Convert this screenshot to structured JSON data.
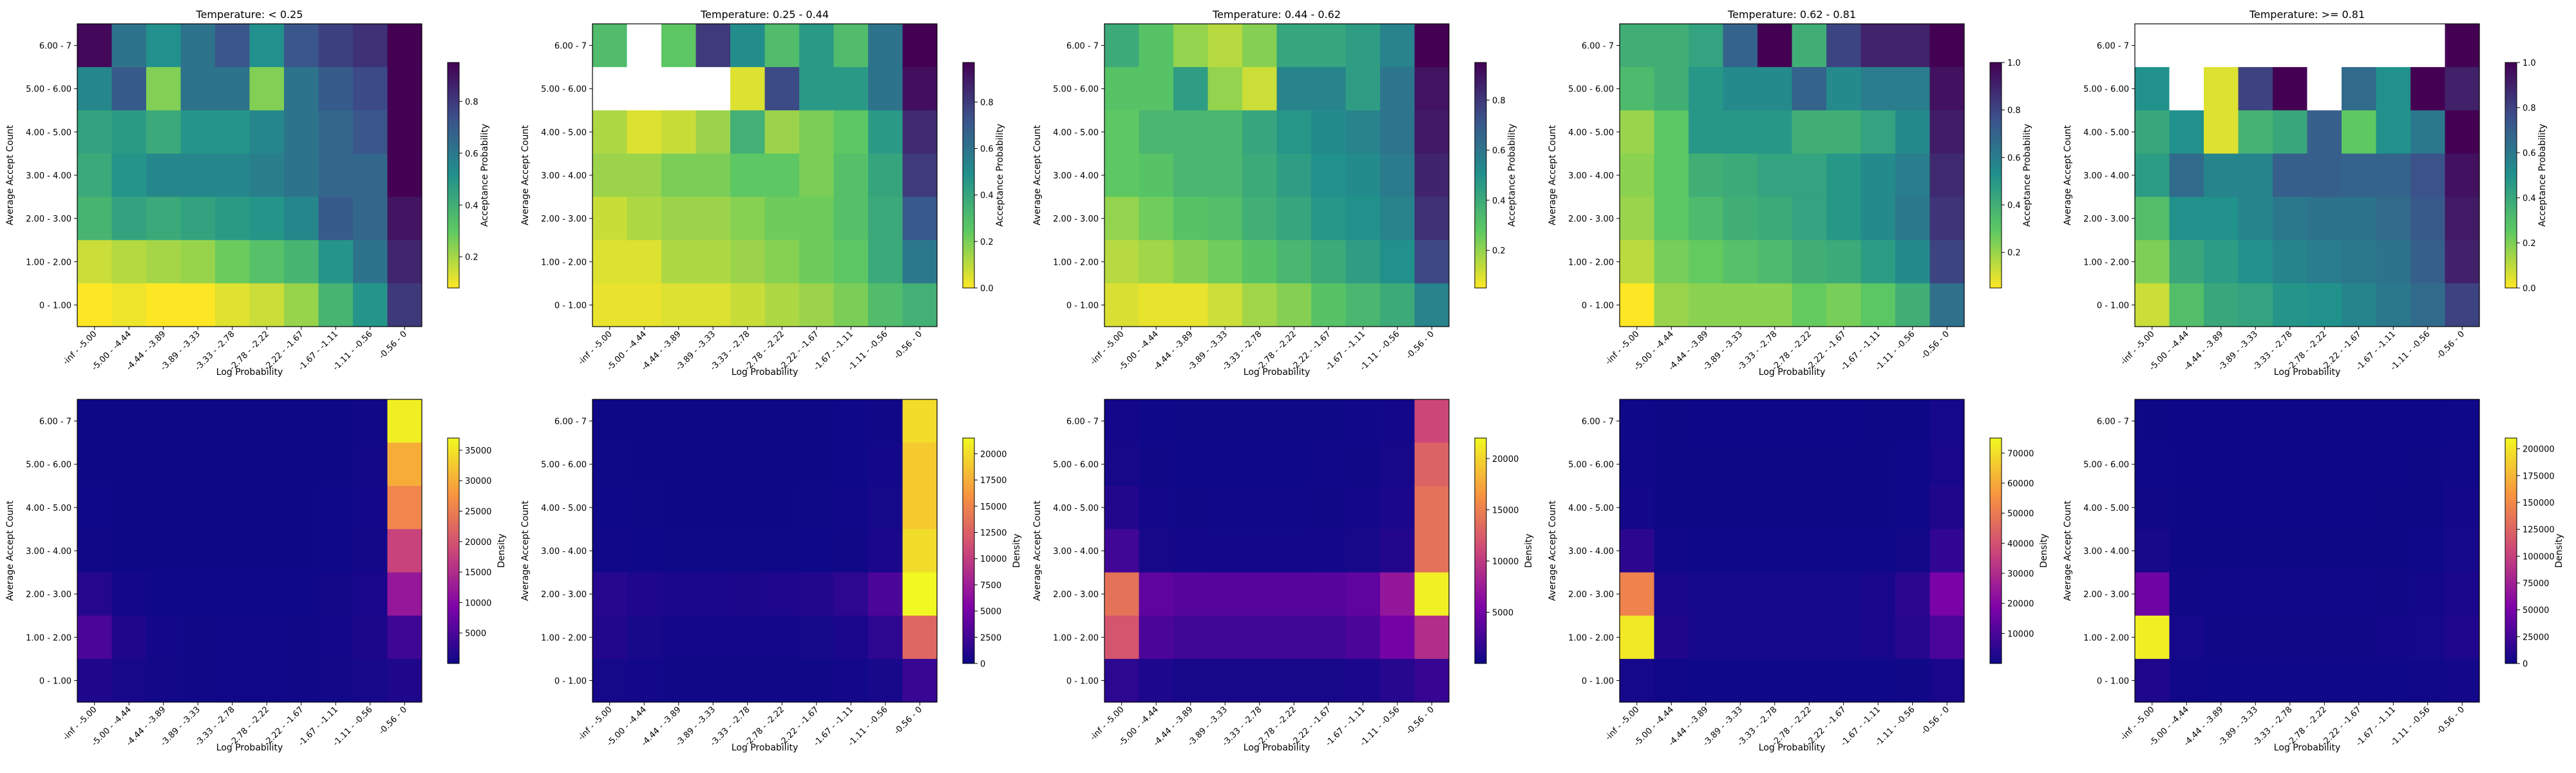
{
  "chart_data": {
    "type": "heatmap",
    "rows": [
      "0 - 1.00",
      "1.00 - 2.00",
      "2.00 - 3.00",
      "3.00 - 4.00",
      "4.00 - 5.00",
      "5.00 - 6.00",
      "6.00 - 7"
    ],
    "cols": [
      "-inf - -5.00",
      "-5.00 - -4.44",
      "-4.44 - -3.89",
      "-3.89 - -3.33",
      "-3.33 - -2.78",
      "-2.78 - -2.22",
      "-2.22 - -1.67",
      "-1.67 - -1.11",
      "-1.11 - -0.56",
      "-0.56 - 0"
    ],
    "xlabel": "Log Probability",
    "ylabel": "Average Accept Count",
    "row_order": "top row is 6.00 - 7, bottom row is 0 - 1.00",
    "panels_top": [
      {
        "title": "Temperature: < 0.25",
        "colormap": "viridis_r",
        "colorbar_label": "Acceptance Probability",
        "vmin": 0.08,
        "vmax": 0.95,
        "ticks": [
          "0.2",
          "0.4",
          "0.6",
          "0.8"
        ],
        "tick_values": [
          0.2,
          0.4,
          0.6,
          0.8
        ],
        "values": [
          [
            0.93,
            0.62,
            0.52,
            0.62,
            0.72,
            0.52,
            0.72,
            0.78,
            0.82,
            0.95
          ],
          [
            0.55,
            0.7,
            0.25,
            0.62,
            0.62,
            0.25,
            0.62,
            0.7,
            0.75,
            0.95
          ],
          [
            0.45,
            0.48,
            0.42,
            0.5,
            0.5,
            0.55,
            0.62,
            0.66,
            0.72,
            0.95
          ],
          [
            0.42,
            0.5,
            0.55,
            0.55,
            0.55,
            0.58,
            0.62,
            0.66,
            0.66,
            0.95
          ],
          [
            0.38,
            0.45,
            0.42,
            0.45,
            0.48,
            0.5,
            0.55,
            0.7,
            0.66,
            0.9
          ],
          [
            0.15,
            0.18,
            0.2,
            0.22,
            0.28,
            0.33,
            0.38,
            0.5,
            0.62,
            0.85
          ],
          [
            0.08,
            0.1,
            0.08,
            0.08,
            0.12,
            0.15,
            0.22,
            0.38,
            0.5,
            0.8
          ]
        ]
      },
      {
        "title": "Temperature: 0.25 - 0.44",
        "colormap": "viridis_r",
        "colorbar_label": "Acceptance Probability",
        "vmin": 0.0,
        "vmax": 0.97,
        "ticks": [
          "0.0",
          "0.2",
          "0.4",
          "0.6",
          "0.8"
        ],
        "tick_values": [
          0.0,
          0.2,
          0.4,
          0.6,
          0.8
        ],
        "values": [
          [
            0.3,
            null,
            0.25,
            0.8,
            0.5,
            0.3,
            0.45,
            0.3,
            0.6,
            0.97
          ],
          [
            null,
            null,
            null,
            null,
            0.05,
            0.75,
            0.45,
            0.45,
            0.6,
            0.93
          ],
          [
            0.12,
            0.05,
            0.08,
            0.15,
            0.35,
            0.15,
            0.2,
            0.25,
            0.45,
            0.85
          ],
          [
            0.15,
            0.15,
            0.2,
            0.2,
            0.25,
            0.25,
            0.2,
            0.28,
            0.4,
            0.8
          ],
          [
            0.08,
            0.12,
            0.15,
            0.15,
            0.18,
            0.22,
            0.22,
            0.28,
            0.38,
            0.7
          ],
          [
            0.05,
            0.05,
            0.12,
            0.12,
            0.15,
            0.18,
            0.22,
            0.25,
            0.38,
            0.58
          ],
          [
            0.03,
            0.03,
            0.05,
            0.05,
            0.08,
            0.12,
            0.15,
            0.2,
            0.3,
            0.35
          ]
        ]
      },
      {
        "title": "Temperature: 0.44 - 0.62",
        "colormap": "viridis_r",
        "colorbar_label": "Acceptance Probability",
        "vmin": 0.05,
        "vmax": 0.95,
        "ticks": [
          "0.2",
          "0.4",
          "0.6",
          "0.8"
        ],
        "tick_values": [
          0.2,
          0.4,
          0.6,
          0.8
        ],
        "values": [
          [
            0.4,
            0.3,
            0.2,
            0.15,
            0.22,
            0.42,
            0.42,
            0.45,
            0.55,
            0.95
          ],
          [
            0.3,
            0.3,
            0.45,
            0.2,
            0.12,
            0.55,
            0.55,
            0.45,
            0.6,
            0.9
          ],
          [
            0.28,
            0.35,
            0.35,
            0.35,
            0.42,
            0.48,
            0.52,
            0.55,
            0.6,
            0.88
          ],
          [
            0.28,
            0.3,
            0.35,
            0.35,
            0.4,
            0.45,
            0.5,
            0.52,
            0.58,
            0.85
          ],
          [
            0.2,
            0.25,
            0.3,
            0.32,
            0.38,
            0.42,
            0.48,
            0.5,
            0.55,
            0.82
          ],
          [
            0.15,
            0.18,
            0.22,
            0.25,
            0.3,
            0.35,
            0.4,
            0.45,
            0.5,
            0.75
          ],
          [
            0.1,
            0.08,
            0.08,
            0.12,
            0.18,
            0.22,
            0.3,
            0.35,
            0.4,
            0.55
          ]
        ]
      },
      {
        "title": "Temperature: 0.62 - 0.81",
        "colormap": "viridis_r",
        "colorbar_label": "Acceptance Probability",
        "vmin": 0.05,
        "vmax": 1.0,
        "ticks": [
          "0.2",
          "0.4",
          "0.6",
          "0.8",
          "1.0"
        ],
        "tick_values": [
          0.2,
          0.4,
          0.6,
          0.8,
          1.0
        ],
        "values": [
          [
            0.4,
            0.4,
            0.45,
            0.7,
            1.0,
            0.4,
            0.8,
            0.9,
            0.9,
            1.0
          ],
          [
            0.35,
            0.4,
            0.5,
            0.55,
            0.55,
            0.7,
            0.55,
            0.6,
            0.6,
            0.95
          ],
          [
            0.2,
            0.3,
            0.5,
            0.5,
            0.5,
            0.4,
            0.4,
            0.45,
            0.55,
            0.92
          ],
          [
            0.22,
            0.3,
            0.4,
            0.42,
            0.45,
            0.45,
            0.5,
            0.55,
            0.6,
            0.88
          ],
          [
            0.2,
            0.3,
            0.35,
            0.4,
            0.42,
            0.45,
            0.5,
            0.55,
            0.62,
            0.85
          ],
          [
            0.15,
            0.25,
            0.28,
            0.32,
            0.35,
            0.4,
            0.42,
            0.48,
            0.55,
            0.8
          ],
          [
            0.05,
            0.2,
            0.22,
            0.22,
            0.22,
            0.28,
            0.25,
            0.3,
            0.4,
            0.65
          ]
        ]
      },
      {
        "title": "Temperature: >= 0.81",
        "colormap": "viridis_r",
        "colorbar_label": "Acceptance Probability",
        "vmin": 0.0,
        "vmax": 1.0,
        "ticks": [
          "0.0",
          "0.2",
          "0.4",
          "0.6",
          "0.8",
          "1.0"
        ],
        "tick_values": [
          0.0,
          0.2,
          0.4,
          0.6,
          0.8,
          1.0
        ],
        "values": [
          [
            null,
            null,
            null,
            null,
            null,
            null,
            null,
            null,
            null,
            1.0
          ],
          [
            0.5,
            null,
            0.05,
            0.8,
            1.0,
            null,
            0.65,
            0.5,
            1.0,
            0.9
          ],
          [
            0.4,
            0.5,
            0.05,
            0.35,
            0.4,
            0.7,
            0.25,
            0.5,
            0.6,
            1.0
          ],
          [
            0.45,
            0.65,
            0.55,
            0.55,
            0.7,
            0.7,
            0.68,
            0.68,
            0.75,
            0.95
          ],
          [
            0.3,
            0.5,
            0.5,
            0.55,
            0.6,
            0.62,
            0.62,
            0.65,
            0.72,
            0.92
          ],
          [
            0.2,
            0.4,
            0.45,
            0.5,
            0.55,
            0.58,
            0.6,
            0.62,
            0.7,
            0.9
          ],
          [
            0.08,
            0.3,
            0.4,
            0.42,
            0.48,
            0.5,
            0.55,
            0.6,
            0.65,
            0.8
          ]
        ]
      }
    ],
    "panels_bottom": [
      {
        "colormap": "plasma",
        "colorbar_label": "Density",
        "vmin": 0,
        "vmax": 37000,
        "ticks": [
          "5000",
          "10000",
          "15000",
          "20000",
          "25000",
          "30000",
          "35000"
        ],
        "tick_values": [
          5000,
          10000,
          15000,
          20000,
          25000,
          30000,
          35000
        ],
        "values": [
          [
            50,
            50,
            50,
            50,
            50,
            50,
            50,
            100,
            300,
            36000
          ],
          [
            80,
            50,
            50,
            50,
            50,
            50,
            50,
            100,
            400,
            30000
          ],
          [
            150,
            80,
            50,
            50,
            50,
            50,
            80,
            150,
            500,
            26000
          ],
          [
            300,
            100,
            80,
            80,
            80,
            80,
            100,
            200,
            600,
            18000
          ],
          [
            2000,
            500,
            200,
            150,
            150,
            150,
            200,
            400,
            1000,
            12000
          ],
          [
            5000,
            1500,
            500,
            300,
            250,
            250,
            300,
            500,
            1200,
            4000
          ],
          [
            1500,
            800,
            400,
            300,
            250,
            250,
            300,
            400,
            700,
            1500
          ]
        ]
      },
      {
        "colormap": "plasma",
        "colorbar_label": "Density",
        "vmin": 0,
        "vmax": 21500,
        "ticks": [
          "0",
          "2500",
          "5000",
          "7500",
          "10000",
          "12500",
          "15000",
          "17500",
          "20000"
        ],
        "tick_values": [
          0,
          2500,
          5000,
          7500,
          10000,
          12500,
          15000,
          17500,
          20000
        ],
        "values": [
          [
            50,
            50,
            50,
            50,
            50,
            50,
            50,
            100,
            200,
            20000
          ],
          [
            80,
            50,
            50,
            50,
            50,
            50,
            50,
            100,
            300,
            19000
          ],
          [
            100,
            80,
            50,
            50,
            50,
            50,
            80,
            150,
            400,
            19000
          ],
          [
            150,
            100,
            80,
            80,
            80,
            80,
            100,
            200,
            600,
            20000
          ],
          [
            1200,
            800,
            600,
            600,
            700,
            800,
            1000,
            1500,
            3000,
            21500
          ],
          [
            1000,
            500,
            300,
            300,
            300,
            300,
            400,
            600,
            1500,
            13000
          ],
          [
            400,
            300,
            200,
            200,
            200,
            200,
            200,
            300,
            500,
            2000
          ]
        ]
      },
      {
        "colormap": "plasma",
        "colorbar_label": "Density",
        "vmin": 0,
        "vmax": 22000,
        "ticks": [
          "5000",
          "10000",
          "15000",
          "20000"
        ],
        "tick_values": [
          5000,
          10000,
          15000,
          20000
        ],
        "values": [
          [
            300,
            100,
            80,
            80,
            80,
            80,
            80,
            150,
            300,
            11000
          ],
          [
            500,
            200,
            100,
            100,
            100,
            100,
            150,
            200,
            500,
            13000
          ],
          [
            1000,
            300,
            200,
            150,
            150,
            150,
            200,
            300,
            700,
            14000
          ],
          [
            2500,
            500,
            300,
            250,
            250,
            250,
            300,
            500,
            1000,
            14000
          ],
          [
            14000,
            4000,
            3500,
            3500,
            3500,
            3500,
            3500,
            4000,
            7000,
            21500
          ],
          [
            12000,
            3000,
            2500,
            2500,
            2500,
            2500,
            2500,
            3000,
            5000,
            9000
          ],
          [
            1500,
            800,
            500,
            500,
            500,
            500,
            500,
            700,
            1200,
            2000
          ]
        ]
      },
      {
        "colormap": "plasma",
        "colorbar_label": "Density",
        "vmin": 0,
        "vmax": 75000,
        "ticks": [
          "10000",
          "20000",
          "30000",
          "40000",
          "50000",
          "60000",
          "70000"
        ],
        "tick_values": [
          10000,
          20000,
          30000,
          40000,
          50000,
          60000,
          70000
        ],
        "values": [
          [
            300,
            100,
            80,
            80,
            80,
            80,
            80,
            100,
            200,
            1500
          ],
          [
            500,
            150,
            100,
            100,
            100,
            100,
            100,
            150,
            300,
            2000
          ],
          [
            1000,
            200,
            150,
            150,
            150,
            150,
            150,
            200,
            400,
            3000
          ],
          [
            5000,
            500,
            300,
            300,
            300,
            300,
            300,
            400,
            800,
            6000
          ],
          [
            52000,
            2000,
            1500,
            1500,
            1500,
            1500,
            1500,
            2000,
            5000,
            18000
          ],
          [
            72000,
            3000,
            1500,
            1500,
            1500,
            1500,
            1500,
            2000,
            4000,
            10000
          ],
          [
            1500,
            500,
            300,
            300,
            300,
            300,
            300,
            400,
            700,
            2000
          ]
        ]
      },
      {
        "colormap": "plasma",
        "colorbar_label": "Density",
        "vmin": 0,
        "vmax": 210000,
        "ticks": [
          "0",
          "25000",
          "50000",
          "75000",
          "100000",
          "125000",
          "150000",
          "175000",
          "200000"
        ],
        "tick_values": [
          0,
          25000,
          50000,
          75000,
          100000,
          125000,
          150000,
          175000,
          200000
        ],
        "values": [
          [
            500,
            100,
            100,
            100,
            100,
            100,
            100,
            100,
            200,
            1000
          ],
          [
            1000,
            200,
            150,
            150,
            150,
            150,
            150,
            200,
            300,
            1500
          ],
          [
            2000,
            300,
            200,
            200,
            200,
            200,
            200,
            300,
            500,
            2500
          ],
          [
            5000,
            500,
            300,
            300,
            300,
            300,
            300,
            400,
            800,
            4000
          ],
          [
            45000,
            2000,
            1500,
            1500,
            1500,
            1500,
            1500,
            2000,
            3000,
            6000
          ],
          [
            205000,
            4000,
            2000,
            2000,
            2000,
            2000,
            2000,
            2500,
            4000,
            8000
          ],
          [
            8000,
            1500,
            800,
            800,
            800,
            800,
            800,
            1000,
            1500,
            3000
          ]
        ]
      }
    ]
  }
}
